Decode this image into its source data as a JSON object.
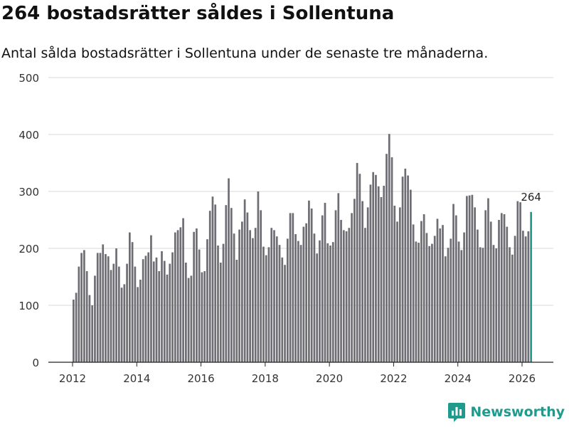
{
  "header": {
    "title": "264 bostadsrätter såldes i Sollentuna",
    "subtitle": "Antal sålda bostadsrätter i Sollentuna under de senaste tre månaderna."
  },
  "brand": {
    "name": "Newsworthy",
    "color": "#1f9b8e"
  },
  "colors": {
    "bar": "#6d6d73",
    "highlight": "#1f9b8e",
    "grid": "#d9d9d9"
  },
  "chart_data": {
    "type": "bar",
    "title": "264 bostadsrätter såldes i Sollentuna",
    "xlabel": "",
    "ylabel": "",
    "ylim": [
      0,
      500
    ],
    "y_ticks": [
      0,
      100,
      200,
      300,
      400,
      500
    ],
    "x_ticks": [
      2012,
      2014,
      2016,
      2018,
      2020,
      2022,
      2024,
      2026
    ],
    "start_year": 2012,
    "start_month": 1,
    "highlight_label": "264",
    "values": [
      110,
      122,
      168,
      192,
      197,
      160,
      118,
      100,
      152,
      192,
      192,
      207,
      190,
      186,
      162,
      173,
      200,
      168,
      131,
      137,
      173,
      228,
      211,
      168,
      132,
      145,
      181,
      187,
      193,
      223,
      177,
      184,
      160,
      195,
      178,
      154,
      173,
      193,
      228,
      232,
      237,
      253,
      175,
      148,
      152,
      229,
      235,
      198,
      158,
      160,
      216,
      266,
      291,
      277,
      205,
      175,
      208,
      276,
      323,
      271,
      226,
      180,
      233,
      247,
      286,
      263,
      232,
      218,
      236,
      300,
      267,
      203,
      188,
      202,
      236,
      232,
      221,
      206,
      184,
      171,
      217,
      262,
      262,
      225,
      213,
      206,
      238,
      244,
      284,
      270,
      226,
      191,
      214,
      258,
      280,
      209,
      205,
      211,
      267,
      297,
      250,
      232,
      230,
      236,
      262,
      287,
      350,
      331,
      283,
      236,
      272,
      312,
      334,
      329,
      309,
      290,
      310,
      366,
      401,
      360,
      275,
      247,
      272,
      326,
      340,
      328,
      303,
      242,
      212,
      210,
      248,
      260,
      227,
      204,
      208,
      222,
      252,
      235,
      241,
      186,
      201,
      217,
      278,
      258,
      212,
      197,
      228,
      292,
      293,
      294,
      272,
      233,
      202,
      201,
      267,
      288,
      247,
      206,
      200,
      250,
      262,
      260,
      238,
      202,
      189,
      222,
      283,
      281,
      231,
      221,
      230,
      264
    ]
  }
}
